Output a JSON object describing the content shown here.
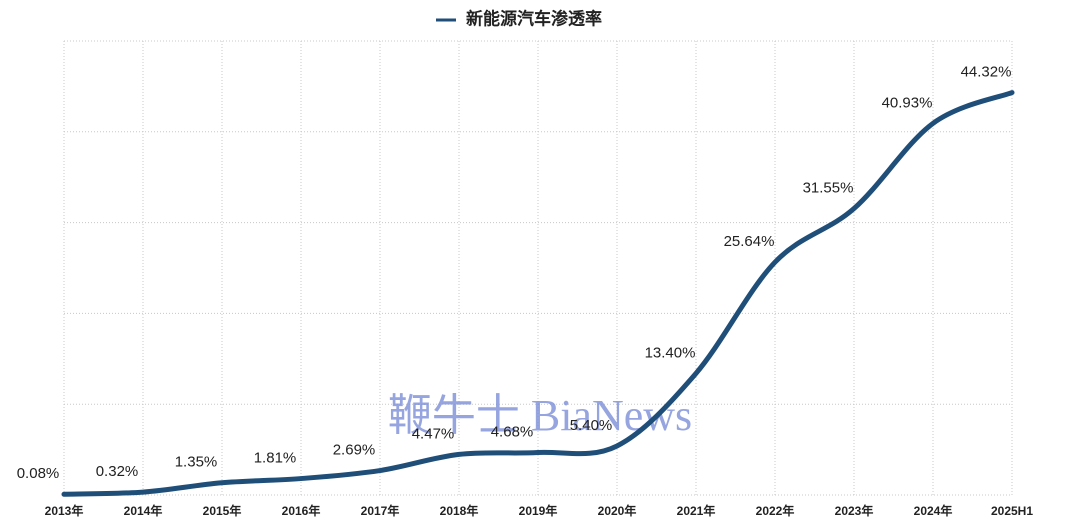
{
  "chart_data": {
    "type": "line",
    "categories": [
      "2013年",
      "2014年",
      "2015年",
      "2016年",
      "2017年",
      "2018年",
      "2019年",
      "2020年",
      "2021年",
      "2022年",
      "2023年",
      "2024年",
      "2025H1"
    ],
    "series": [
      {
        "name": "新能源汽车渗透率",
        "color": "#1f4e79",
        "values": [
          0.08,
          0.32,
          1.35,
          1.81,
          2.69,
          4.47,
          4.68,
          5.4,
          13.4,
          25.64,
          31.55,
          40.93,
          44.32
        ],
        "value_labels": [
          "0.08%",
          "0.32%",
          "1.35%",
          "1.81%",
          "2.69%",
          "4.47%",
          "4.68%",
          "5.40%",
          "13.40%",
          "25.64%",
          "31.55%",
          "40.93%",
          "44.32%"
        ]
      }
    ],
    "ylim": [
      0,
      50
    ],
    "yticks": [
      0,
      10,
      20,
      30,
      40,
      50
    ],
    "grid": true,
    "legend": "top",
    "watermark": "鞭牛士 BiaNews"
  }
}
